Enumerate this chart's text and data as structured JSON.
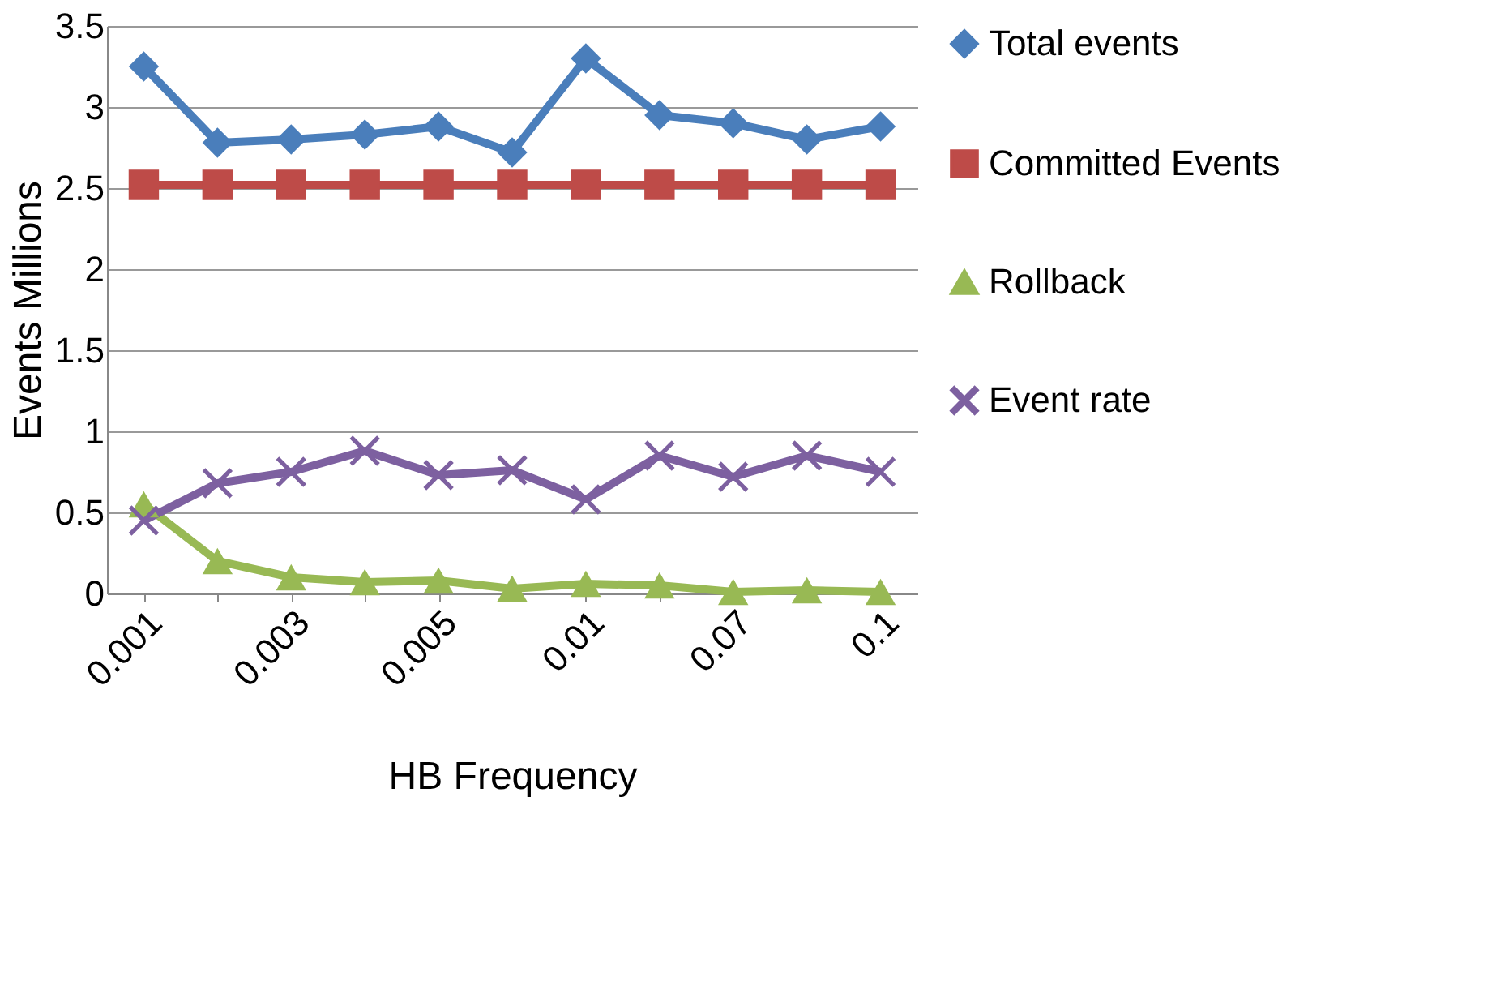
{
  "chart_data": {
    "type": "line",
    "xlabel": "HB Frequency",
    "ylabel": "Events  Millions",
    "categories": [
      "0.001",
      null,
      "0.003",
      null,
      "0.005",
      null,
      "0.01",
      null,
      "0.07",
      null,
      "0.1"
    ],
    "series": [
      {
        "name": "Total events",
        "color": "#4a7ebb",
        "marker": "diamond",
        "values": [
          3.25,
          2.78,
          2.8,
          2.83,
          2.88,
          2.72,
          3.3,
          2.95,
          2.9,
          2.8,
          2.88
        ]
      },
      {
        "name": "Committed Events",
        "color": "#be4b48",
        "marker": "square",
        "values": [
          2.52,
          2.52,
          2.52,
          2.52,
          2.52,
          2.52,
          2.52,
          2.52,
          2.52,
          2.52,
          2.52
        ]
      },
      {
        "name": "Rollback",
        "color": "#98b954",
        "marker": "triangle",
        "values": [
          0.55,
          0.2,
          0.1,
          0.07,
          0.08,
          0.03,
          0.06,
          0.05,
          0.01,
          0.02,
          0.01
        ]
      },
      {
        "name": "Event rate",
        "color": "#7d60a0",
        "marker": "cross",
        "values": [
          0.45,
          0.68,
          0.75,
          0.88,
          0.73,
          0.76,
          0.58,
          0.85,
          0.72,
          0.85,
          0.75
        ]
      }
    ],
    "ylim": [
      0,
      3.5
    ],
    "yticks": [
      0,
      0.5,
      1,
      1.5,
      2,
      2.5,
      3,
      3.5
    ],
    "grid": "y",
    "legend": "right"
  }
}
